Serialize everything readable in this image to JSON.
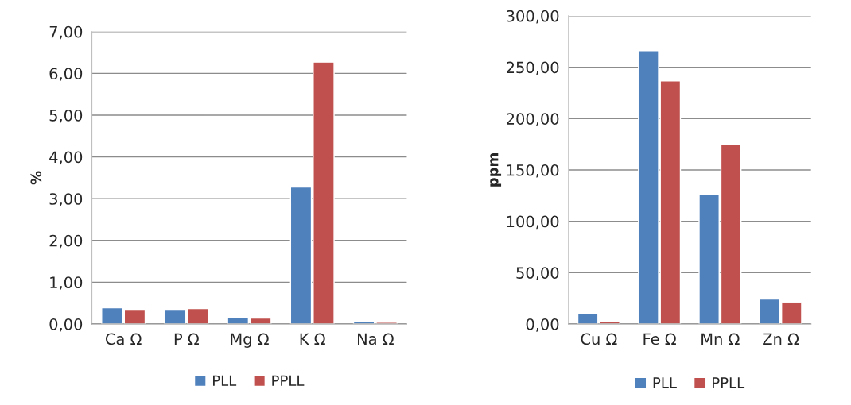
{
  "chart_data": [
    {
      "type": "bar",
      "ylabel": "%",
      "categories": [
        "Ca Ω",
        "P Ω",
        "Mg Ω",
        "K Ω",
        "Na Ω"
      ],
      "series": [
        {
          "name": "PLL",
          "color": "#4f81bd",
          "values": [
            0.39,
            0.35,
            0.15,
            3.28,
            0.05
          ]
        },
        {
          "name": "PPLL",
          "color": "#c0504d",
          "values": [
            0.35,
            0.37,
            0.14,
            6.27,
            0.04
          ]
        }
      ],
      "ylim": [
        0,
        7
      ],
      "yticks": [
        {
          "value": 0,
          "label": "0,00"
        },
        {
          "value": 1,
          "label": "1,00"
        },
        {
          "value": 2,
          "label": "2,00"
        },
        {
          "value": 3,
          "label": "3,00"
        },
        {
          "value": 4,
          "label": "4,00"
        },
        {
          "value": 5,
          "label": "5,00"
        },
        {
          "value": 6,
          "label": "6,00"
        },
        {
          "value": 7,
          "label": "7,00"
        }
      ],
      "grid": "y",
      "legend": "bottom"
    },
    {
      "type": "bar",
      "ylabel": "ppm",
      "categories": [
        "Cu Ω",
        "Fe Ω",
        "Mn Ω",
        "Zn Ω"
      ],
      "series": [
        {
          "name": "PLL",
          "color": "#4f81bd",
          "values": [
            10.1,
            266,
            126.4,
            24.3
          ]
        },
        {
          "name": "PPLL",
          "color": "#c0504d",
          "values": [
            2.1,
            236.7,
            175.2,
            21
          ]
        }
      ],
      "ylim": [
        0,
        300
      ],
      "yticks": [
        {
          "value": 0,
          "label": "0,00"
        },
        {
          "value": 50,
          "label": "50,00"
        },
        {
          "value": 100,
          "label": "100,00"
        },
        {
          "value": 150,
          "label": "150,00"
        },
        {
          "value": 200,
          "label": "200,00"
        },
        {
          "value": 250,
          "label": "250,00"
        },
        {
          "value": 300,
          "label": "300,00"
        }
      ],
      "grid": "y",
      "legend": "bottom"
    }
  ]
}
